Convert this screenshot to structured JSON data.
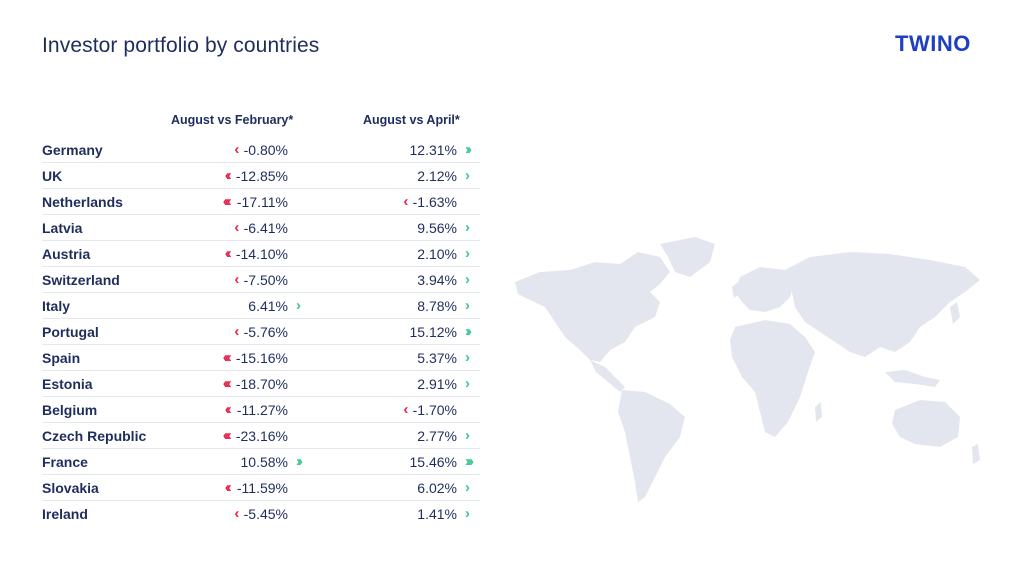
{
  "header": {
    "title": "Investor portfolio by countries",
    "logo": "TWINO"
  },
  "colors": {
    "negative": "#e8234a",
    "positive": "#3cc88e",
    "text": "#1f2d5c",
    "logo": "#1e3fbf",
    "map": "#e3e6ee"
  },
  "chart_data": {
    "type": "table",
    "columns": [
      "August vs February*",
      "August vs April*"
    ],
    "rows": [
      {
        "country": "Germany",
        "feb": "-0.80%",
        "feb_arrows": 1,
        "apr": "12.31%",
        "apr_arrows": 2
      },
      {
        "country": "UK",
        "feb": "-12.85%",
        "feb_arrows": 2,
        "apr": "2.12%",
        "apr_arrows": 1
      },
      {
        "country": "Netherlands",
        "feb": "-17.11%",
        "feb_arrows": 3,
        "apr": "-1.63%",
        "apr_arrows": 1
      },
      {
        "country": "Latvia",
        "feb": "-6.41%",
        "feb_arrows": 1,
        "apr": "9.56%",
        "apr_arrows": 1
      },
      {
        "country": "Austria",
        "feb": "-14.10%",
        "feb_arrows": 2,
        "apr": "2.10%",
        "apr_arrows": 1
      },
      {
        "country": "Switzerland",
        "feb": "-7.50%",
        "feb_arrows": 1,
        "apr": "3.94%",
        "apr_arrows": 1
      },
      {
        "country": "Italy",
        "feb": "6.41%",
        "feb_arrows": 1,
        "apr": "8.78%",
        "apr_arrows": 1
      },
      {
        "country": "Portugal",
        "feb": "-5.76%",
        "feb_arrows": 1,
        "apr": "15.12%",
        "apr_arrows": 2
      },
      {
        "country": "Spain",
        "feb": "-15.16%",
        "feb_arrows": 3,
        "apr": "5.37%",
        "apr_arrows": 1
      },
      {
        "country": "Estonia",
        "feb": "-18.70%",
        "feb_arrows": 3,
        "apr": "2.91%",
        "apr_arrows": 1
      },
      {
        "country": "Belgium",
        "feb": "-11.27%",
        "feb_arrows": 2,
        "apr": "-1.70%",
        "apr_arrows": 1
      },
      {
        "country": "Czech Republic",
        "feb": "-23.16%",
        "feb_arrows": 3,
        "apr": "2.77%",
        "apr_arrows": 1
      },
      {
        "country": "France",
        "feb": "10.58%",
        "feb_arrows": 2,
        "apr": "15.46%",
        "apr_arrows": 3
      },
      {
        "country": "Slovakia",
        "feb": "-11.59%",
        "feb_arrows": 2,
        "apr": "6.02%",
        "apr_arrows": 1
      },
      {
        "country": "Ireland",
        "feb": "-5.45%",
        "feb_arrows": 1,
        "apr": "1.41%",
        "apr_arrows": 1
      }
    ]
  }
}
